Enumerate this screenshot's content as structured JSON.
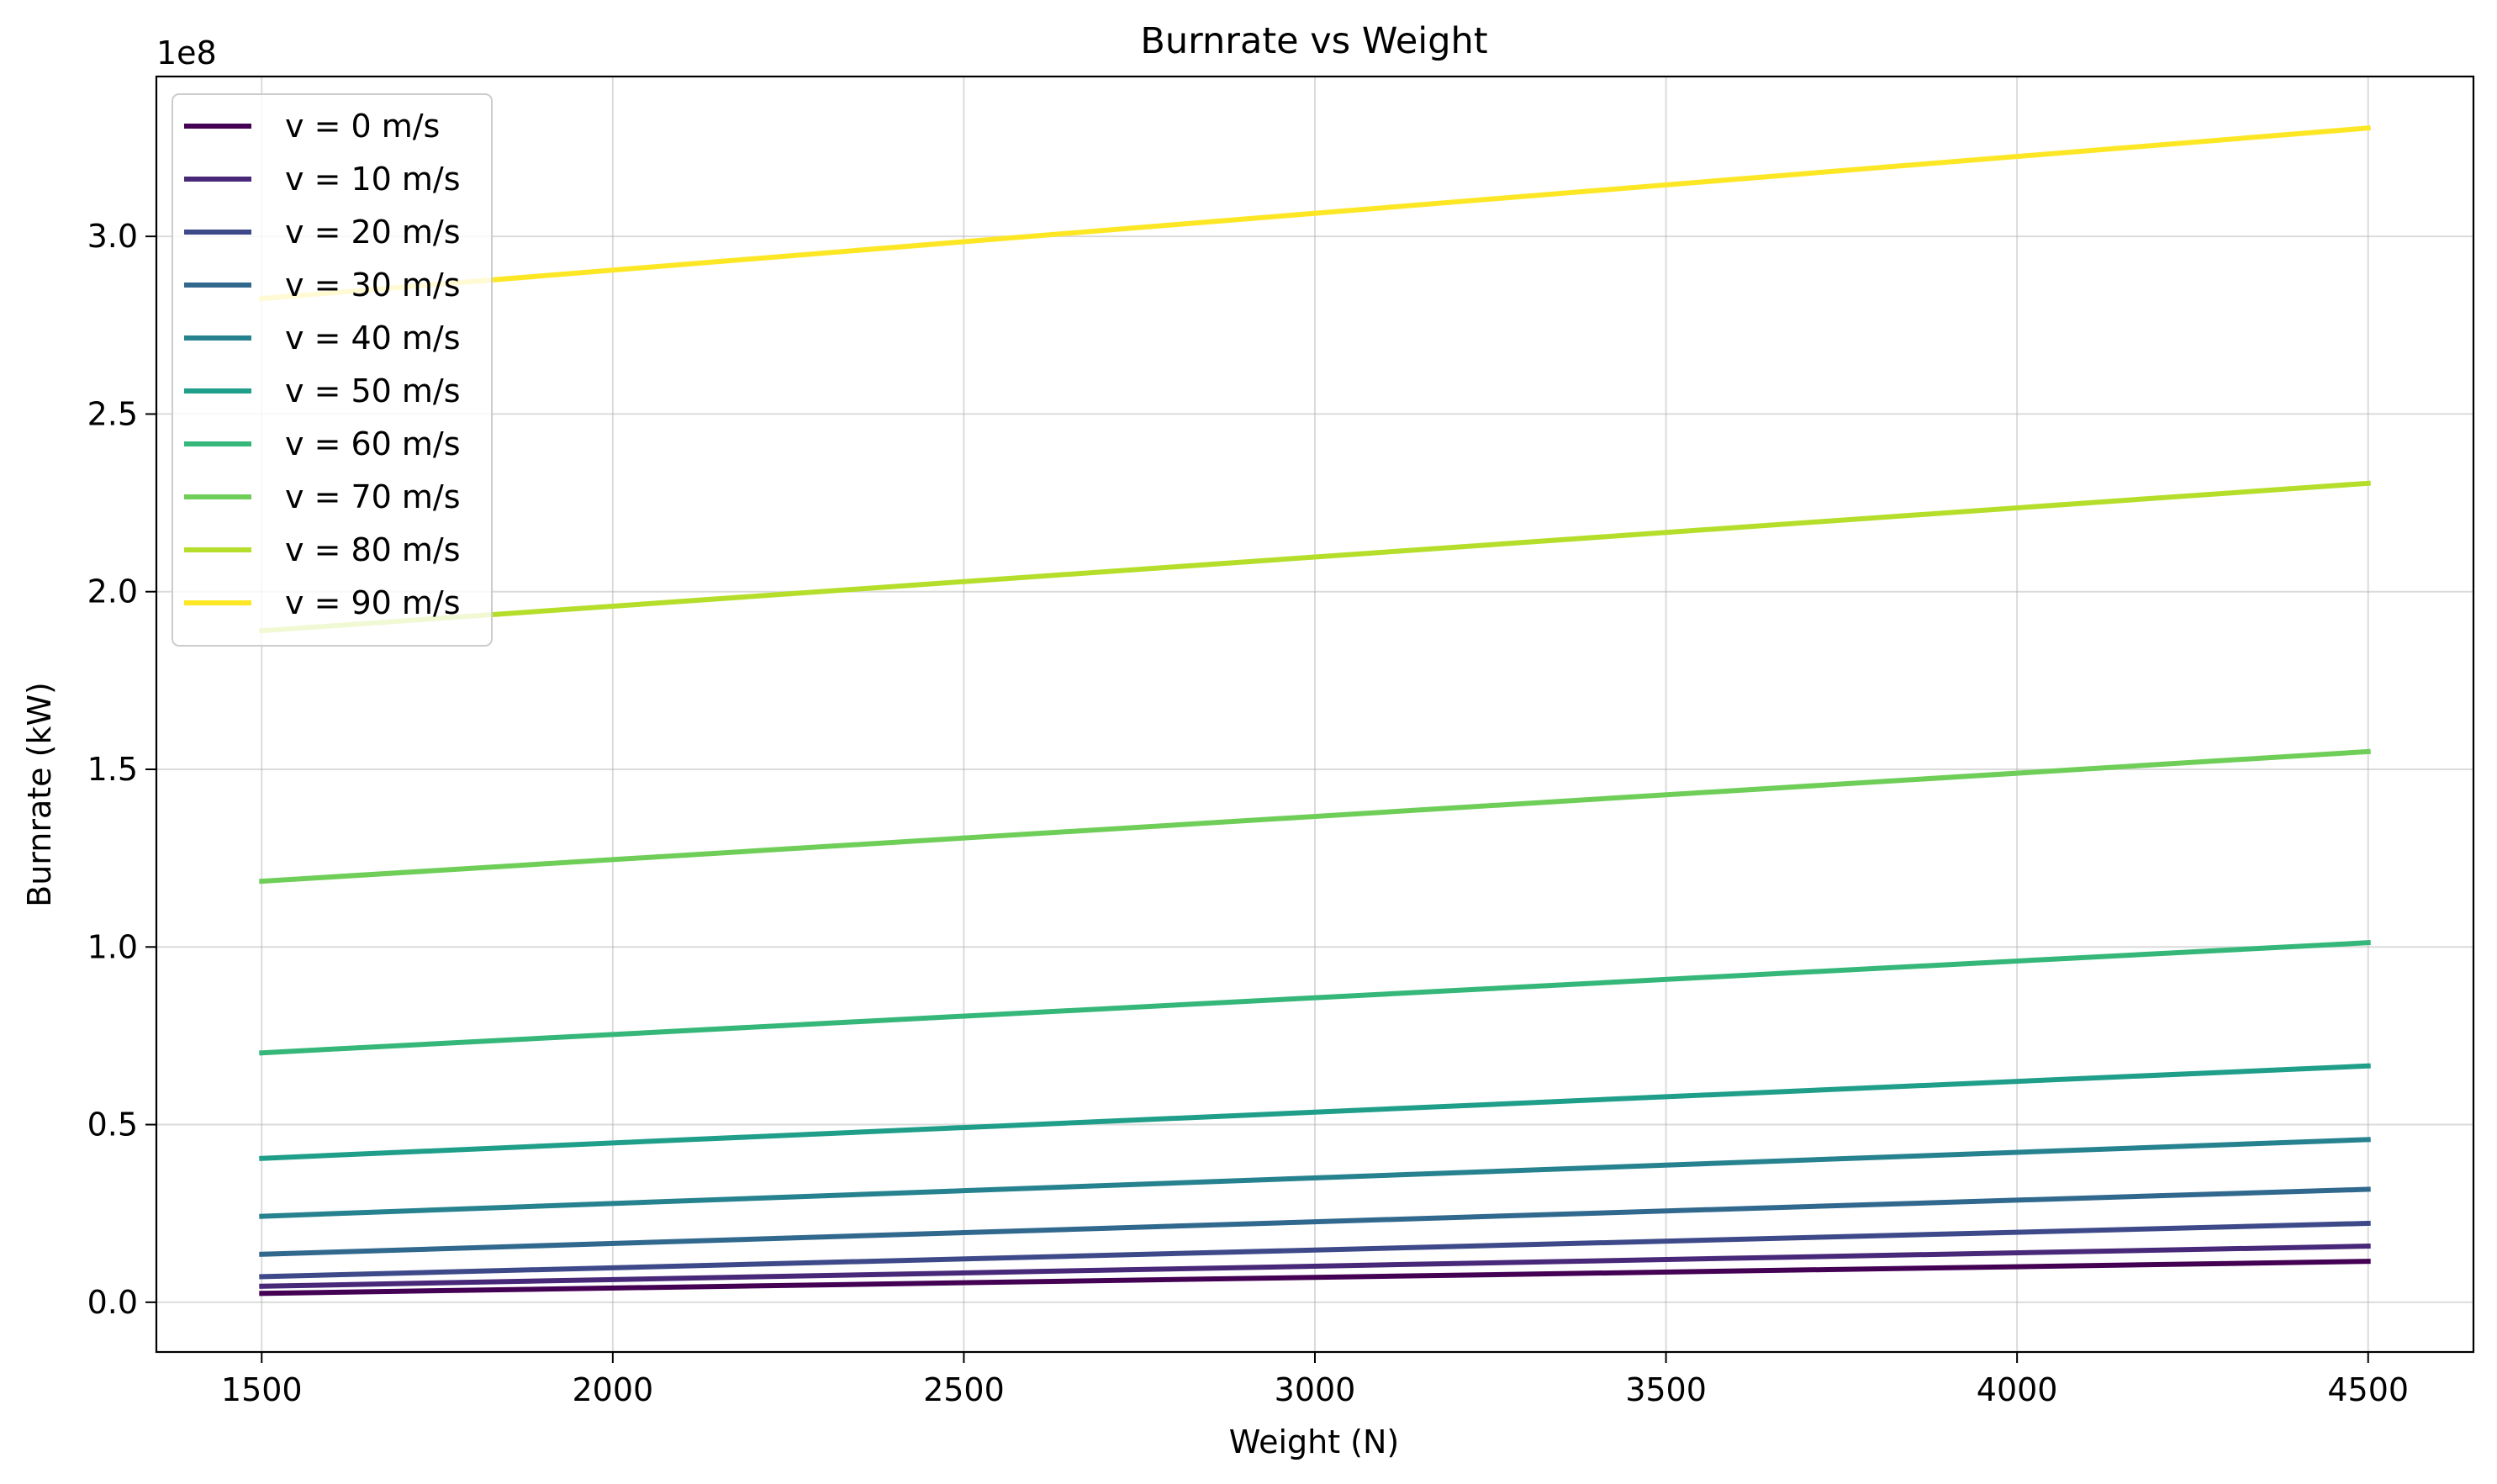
{
  "chart_data": {
    "type": "line",
    "title": "Burnrate vs Weight",
    "xlabel": "Weight (N)",
    "ylabel": "Burnrate (kW)",
    "y_offset_label": "1e8",
    "y_scale_factor": 100000000,
    "xlim": [
      1350,
      4650
    ],
    "ylim": [
      -0.14,
      3.45
    ],
    "xticks": [
      1500,
      2000,
      2500,
      3000,
      3500,
      4000,
      4500
    ],
    "xtick_labels": [
      "1500",
      "2000",
      "2500",
      "3000",
      "3500",
      "4000",
      "4500"
    ],
    "yticks": [
      0.0,
      0.5,
      1.0,
      1.5,
      2.0,
      2.5,
      3.0
    ],
    "ytick_labels": [
      "0.0",
      "0.5",
      "1.0",
      "1.5",
      "2.0",
      "2.5",
      "3.0"
    ],
    "grid": true,
    "legend_position": "top-left",
    "x": [
      1500,
      4500
    ],
    "series": [
      {
        "name": "v = 0 m/s",
        "color": "#440154",
        "values": [
          0.025,
          0.115
        ]
      },
      {
        "name": "v = 10 m/s",
        "color": "#482878",
        "values": [
          0.045,
          0.158
        ]
      },
      {
        "name": "v = 20 m/s",
        "color": "#3e4989",
        "values": [
          0.072,
          0.222
        ]
      },
      {
        "name": "v = 30 m/s",
        "color": "#31688e",
        "values": [
          0.135,
          0.318
        ]
      },
      {
        "name": "v = 40 m/s",
        "color": "#26828e",
        "values": [
          0.242,
          0.458
        ]
      },
      {
        "name": "v = 50 m/s",
        "color": "#1f9e89",
        "values": [
          0.405,
          0.665
        ]
      },
      {
        "name": "v = 60 m/s",
        "color": "#35b779",
        "values": [
          0.702,
          1.012
        ]
      },
      {
        "name": "v = 70 m/s",
        "color": "#6ece58",
        "values": [
          1.185,
          1.55
        ]
      },
      {
        "name": "v = 80 m/s",
        "color": "#b5de2b",
        "values": [
          1.89,
          2.305
        ]
      },
      {
        "name": "v = 90 m/s",
        "color": "#fde725",
        "values": [
          2.825,
          3.305
        ]
      }
    ]
  }
}
